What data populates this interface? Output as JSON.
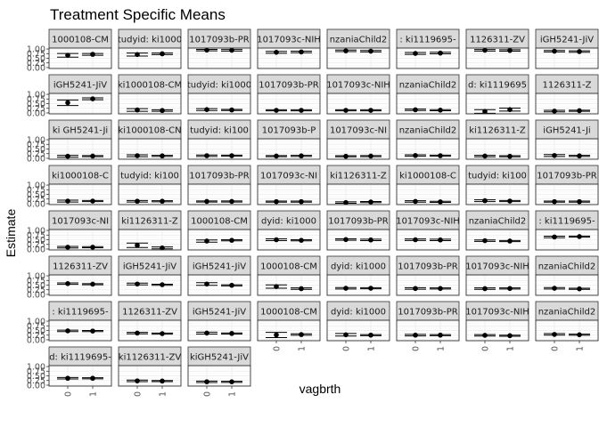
{
  "chart_data": {
    "type": "scatter",
    "title": "Treatment Specific Means",
    "xlabel": "vagbrth",
    "ylabel": "Estimate",
    "x_categories": [
      "0",
      "1"
    ],
    "y_ticks": [
      "0.00",
      "0.25",
      "0.50",
      "0.75",
      "1.00"
    ],
    "ylim": [
      -0.05,
      1.05
    ],
    "grid": true,
    "layout": {
      "ncol": 8,
      "nrow": 8
    },
    "panels": [
      {
        "strip": "1000108-CM",
        "values": [
          {
            "x": "0",
            "est": 0.66,
            "lo": 0.56,
            "hi": 0.76
          },
          {
            "x": "1",
            "est": 0.71,
            "lo": 0.66,
            "hi": 0.76
          }
        ]
      },
      {
        "strip": "tudyid: ki1000",
        "values": [
          {
            "x": "0",
            "est": 0.7,
            "lo": 0.62,
            "hi": 0.78
          },
          {
            "x": "1",
            "est": 0.74,
            "lo": 0.7,
            "hi": 0.78
          }
        ]
      },
      {
        "strip": "1017093b-PR",
        "values": [
          {
            "x": "0",
            "est": 0.94,
            "lo": 0.9,
            "hi": 0.98
          },
          {
            "x": "1",
            "est": 0.93,
            "lo": 0.89,
            "hi": 0.97
          }
        ]
      },
      {
        "strip": "1017093c-NIH",
        "values": [
          {
            "x": "0",
            "est": 0.82,
            "lo": 0.77,
            "hi": 0.87
          },
          {
            "x": "1",
            "est": 0.84,
            "lo": 0.8,
            "hi": 0.88
          }
        ]
      },
      {
        "strip": "nzaniaChild2",
        "values": [
          {
            "x": "0",
            "est": 0.9,
            "lo": 0.86,
            "hi": 0.94
          },
          {
            "x": "1",
            "est": 0.88,
            "lo": 0.84,
            "hi": 0.92
          }
        ]
      },
      {
        "strip": ": ki1119695-",
        "values": [
          {
            "x": "0",
            "est": 0.76,
            "lo": 0.71,
            "hi": 0.81
          },
          {
            "x": "1",
            "est": 0.78,
            "lo": 0.74,
            "hi": 0.82
          }
        ]
      },
      {
        "strip": "1126311-ZV",
        "values": [
          {
            "x": "0",
            "est": 0.93,
            "lo": 0.89,
            "hi": 0.97
          },
          {
            "x": "1",
            "est": 0.92,
            "lo": 0.88,
            "hi": 0.96
          }
        ]
      },
      {
        "strip": "iGH5241-JiV",
        "values": [
          {
            "x": "0",
            "est": 0.88,
            "lo": 0.84,
            "hi": 0.92
          },
          {
            "x": "1",
            "est": 0.86,
            "lo": 0.82,
            "hi": 0.9
          }
        ]
      },
      {
        "strip": "iGH5241-JiV",
        "values": [
          {
            "x": "0",
            "est": 0.55,
            "lo": 0.4,
            "hi": 0.7
          },
          {
            "x": "1",
            "est": 0.76,
            "lo": 0.71,
            "hi": 0.81
          }
        ]
      },
      {
        "strip": "ki1000108-CM",
        "values": [
          {
            "x": "0",
            "est": 0.16,
            "lo": 0.09,
            "hi": 0.23
          },
          {
            "x": "1",
            "est": 0.13,
            "lo": 0.09,
            "hi": 0.17
          }
        ]
      },
      {
        "strip": "tudyid: ki1000",
        "values": [
          {
            "x": "0",
            "est": 0.18,
            "lo": 0.13,
            "hi": 0.23
          },
          {
            "x": "1",
            "est": 0.16,
            "lo": 0.13,
            "hi": 0.19
          }
        ]
      },
      {
        "strip": "1017093b-PR",
        "values": [
          {
            "x": "0",
            "est": 0.14,
            "lo": 0.11,
            "hi": 0.17
          },
          {
            "x": "1",
            "est": 0.14,
            "lo": 0.11,
            "hi": 0.17
          }
        ]
      },
      {
        "strip": "1017093c-NIH",
        "values": [
          {
            "x": "0",
            "est": 0.14,
            "lo": 0.11,
            "hi": 0.17
          },
          {
            "x": "1",
            "est": 0.14,
            "lo": 0.11,
            "hi": 0.17
          }
        ]
      },
      {
        "strip": "nzaniaChild2",
        "values": [
          {
            "x": "0",
            "est": 0.17,
            "lo": 0.13,
            "hi": 0.21
          },
          {
            "x": "1",
            "est": 0.15,
            "lo": 0.12,
            "hi": 0.18
          }
        ]
      },
      {
        "strip": "d: ki1119695",
        "values": [
          {
            "x": "0",
            "est": 0.08,
            "lo": -0.02,
            "hi": 0.18
          },
          {
            "x": "1",
            "est": 0.18,
            "lo": 0.1,
            "hi": 0.26
          }
        ]
      },
      {
        "strip": "1126311-Z",
        "values": [
          {
            "x": "0",
            "est": 0.1,
            "lo": 0.06,
            "hi": 0.14
          },
          {
            "x": "1",
            "est": 0.12,
            "lo": 0.09,
            "hi": 0.15
          }
        ]
      },
      {
        "strip": "ki GH5241-Ji",
        "values": [
          {
            "x": "0",
            "est": 0.11,
            "lo": 0.06,
            "hi": 0.16
          },
          {
            "x": "1",
            "est": 0.12,
            "lo": 0.09,
            "hi": 0.15
          }
        ]
      },
      {
        "strip": "ki1000108-CN",
        "values": [
          {
            "x": "0",
            "est": 0.14,
            "lo": 0.09,
            "hi": 0.19
          },
          {
            "x": "1",
            "est": 0.13,
            "lo": 0.1,
            "hi": 0.16
          }
        ]
      },
      {
        "strip": "tudyid: ki100",
        "values": [
          {
            "x": "0",
            "est": 0.14,
            "lo": 0.1,
            "hi": 0.18
          },
          {
            "x": "1",
            "est": 0.14,
            "lo": 0.11,
            "hi": 0.17
          }
        ]
      },
      {
        "strip": "1017093b-P",
        "values": [
          {
            "x": "0",
            "est": 0.12,
            "lo": 0.09,
            "hi": 0.15
          },
          {
            "x": "1",
            "est": 0.13,
            "lo": 0.1,
            "hi": 0.16
          }
        ]
      },
      {
        "strip": "1017093c-NI",
        "values": [
          {
            "x": "0",
            "est": 0.11,
            "lo": 0.08,
            "hi": 0.14
          },
          {
            "x": "1",
            "est": 0.12,
            "lo": 0.09,
            "hi": 0.15
          }
        ]
      },
      {
        "strip": "nzaniaChild2",
        "values": [
          {
            "x": "0",
            "est": 0.15,
            "lo": 0.11,
            "hi": 0.19
          },
          {
            "x": "1",
            "est": 0.14,
            "lo": 0.11,
            "hi": 0.17
          }
        ]
      },
      {
        "strip": "ki1126311-Z",
        "values": [
          {
            "x": "0",
            "est": 0.12,
            "lo": 0.08,
            "hi": 0.16
          },
          {
            "x": "1",
            "est": 0.11,
            "lo": 0.08,
            "hi": 0.14
          }
        ]
      },
      {
        "strip": "iGH5241-Ji",
        "values": [
          {
            "x": "0",
            "est": 0.15,
            "lo": 0.1,
            "hi": 0.2
          },
          {
            "x": "1",
            "est": 0.13,
            "lo": 0.1,
            "hi": 0.16
          }
        ]
      },
      {
        "strip": "ki1000108-C",
        "values": [
          {
            "x": "0",
            "est": 0.14,
            "lo": 0.09,
            "hi": 0.19
          },
          {
            "x": "1",
            "est": 0.14,
            "lo": 0.11,
            "hi": 0.17
          }
        ]
      },
      {
        "strip": "tudyid: ki100",
        "values": [
          {
            "x": "0",
            "est": 0.13,
            "lo": 0.09,
            "hi": 0.17
          },
          {
            "x": "1",
            "est": 0.13,
            "lo": 0.1,
            "hi": 0.16
          }
        ]
      },
      {
        "strip": "1017093b-PR",
        "values": [
          {
            "x": "0",
            "est": 0.12,
            "lo": 0.09,
            "hi": 0.15
          },
          {
            "x": "1",
            "est": 0.12,
            "lo": 0.09,
            "hi": 0.15
          }
        ]
      },
      {
        "strip": "1017093c-NI",
        "values": [
          {
            "x": "0",
            "est": 0.11,
            "lo": 0.08,
            "hi": 0.14
          },
          {
            "x": "1",
            "est": 0.11,
            "lo": 0.08,
            "hi": 0.14
          }
        ]
      },
      {
        "strip": "ki1126311-Z",
        "values": [
          {
            "x": "0",
            "est": 0.06,
            "lo": 0.02,
            "hi": 0.1
          },
          {
            "x": "1",
            "est": 0.09,
            "lo": 0.06,
            "hi": 0.12
          }
        ]
      },
      {
        "strip": "ki1000108-C",
        "values": [
          {
            "x": "0",
            "est": 0.12,
            "lo": 0.08,
            "hi": 0.16
          },
          {
            "x": "1",
            "est": 0.1,
            "lo": 0.07,
            "hi": 0.13
          }
        ]
      },
      {
        "strip": "tudyid: ki100",
        "values": [
          {
            "x": "0",
            "est": 0.16,
            "lo": 0.11,
            "hi": 0.21
          },
          {
            "x": "1",
            "est": 0.14,
            "lo": 0.11,
            "hi": 0.17
          }
        ]
      },
      {
        "strip": "1017093b-PR",
        "values": [
          {
            "x": "0",
            "est": 0.11,
            "lo": 0.08,
            "hi": 0.14
          },
          {
            "x": "1",
            "est": 0.11,
            "lo": 0.08,
            "hi": 0.14
          }
        ]
      },
      {
        "strip": "1017093c-NI",
        "values": [
          {
            "x": "0",
            "est": 0.1,
            "lo": 0.06,
            "hi": 0.14
          },
          {
            "x": "1",
            "est": 0.1,
            "lo": 0.07,
            "hi": 0.13
          }
        ]
      },
      {
        "strip": "ki1126311-Z",
        "values": [
          {
            "x": "0",
            "est": 0.2,
            "lo": 0.08,
            "hi": 0.32
          },
          {
            "x": "1",
            "est": 0.06,
            "lo": 0.01,
            "hi": 0.11
          }
        ]
      },
      {
        "strip": "1000108-CM",
        "values": [
          {
            "x": "0",
            "est": 0.43,
            "lo": 0.37,
            "hi": 0.49
          },
          {
            "x": "1",
            "est": 0.47,
            "lo": 0.44,
            "hi": 0.5
          }
        ]
      },
      {
        "strip": "dyid: ki1000",
        "values": [
          {
            "x": "0",
            "est": 0.5,
            "lo": 0.45,
            "hi": 0.55
          },
          {
            "x": "1",
            "est": 0.47,
            "lo": 0.44,
            "hi": 0.5
          }
        ]
      },
      {
        "strip": "1017093b-PR",
        "values": [
          {
            "x": "0",
            "est": 0.51,
            "lo": 0.47,
            "hi": 0.55
          },
          {
            "x": "1",
            "est": 0.49,
            "lo": 0.45,
            "hi": 0.53
          }
        ]
      },
      {
        "strip": "1017093c-NIH",
        "values": [
          {
            "x": "0",
            "est": 0.5,
            "lo": 0.46,
            "hi": 0.54
          },
          {
            "x": "1",
            "est": 0.49,
            "lo": 0.45,
            "hi": 0.53
          }
        ]
      },
      {
        "strip": "nzaniaChild2",
        "values": [
          {
            "x": "0",
            "est": 0.45,
            "lo": 0.41,
            "hi": 0.49
          },
          {
            "x": "1",
            "est": 0.43,
            "lo": 0.4,
            "hi": 0.46
          }
        ]
      },
      {
        "strip": ": ki1119695-",
        "values": [
          {
            "x": "0",
            "est": 0.65,
            "lo": 0.61,
            "hi": 0.69
          },
          {
            "x": "1",
            "est": 0.67,
            "lo": 0.64,
            "hi": 0.7
          }
        ]
      },
      {
        "strip": "1126311-ZV",
        "values": [
          {
            "x": "0",
            "est": 0.58,
            "lo": 0.54,
            "hi": 0.62
          },
          {
            "x": "1",
            "est": 0.55,
            "lo": 0.52,
            "hi": 0.58
          }
        ]
      },
      {
        "strip": "iGH5241-JiV",
        "values": [
          {
            "x": "0",
            "est": 0.56,
            "lo": 0.51,
            "hi": 0.61
          },
          {
            "x": "1",
            "est": 0.52,
            "lo": 0.49,
            "hi": 0.55
          }
        ]
      },
      {
        "strip": "iGH5241-JiV",
        "values": [
          {
            "x": "0",
            "est": 0.56,
            "lo": 0.49,
            "hi": 0.63
          },
          {
            "x": "1",
            "est": 0.49,
            "lo": 0.46,
            "hi": 0.52
          }
        ]
      },
      {
        "strip": "1000108-CM",
        "values": [
          {
            "x": "0",
            "est": 0.42,
            "lo": 0.33,
            "hi": 0.51
          },
          {
            "x": "1",
            "est": 0.31,
            "lo": 0.27,
            "hi": 0.35
          }
        ]
      },
      {
        "strip": "dyid: ki1000",
        "values": [
          {
            "x": "0",
            "est": 0.33,
            "lo": 0.29,
            "hi": 0.37
          },
          {
            "x": "1",
            "est": 0.33,
            "lo": 0.3,
            "hi": 0.36
          }
        ]
      },
      {
        "strip": "1017093b-PR",
        "values": [
          {
            "x": "0",
            "est": 0.32,
            "lo": 0.28,
            "hi": 0.36
          },
          {
            "x": "1",
            "est": 0.32,
            "lo": 0.29,
            "hi": 0.35
          }
        ]
      },
      {
        "strip": "1017093c-NIH",
        "values": [
          {
            "x": "0",
            "est": 0.31,
            "lo": 0.27,
            "hi": 0.35
          },
          {
            "x": "1",
            "est": 0.32,
            "lo": 0.29,
            "hi": 0.35
          }
        ]
      },
      {
        "strip": "nzaniaChild2",
        "values": [
          {
            "x": "0",
            "est": 0.33,
            "lo": 0.29,
            "hi": 0.37
          },
          {
            "x": "1",
            "est": 0.3,
            "lo": 0.27,
            "hi": 0.33
          }
        ]
      },
      {
        "strip": ": ki1119695-",
        "values": [
          {
            "x": "0",
            "est": 0.48,
            "lo": 0.44,
            "hi": 0.52
          },
          {
            "x": "1",
            "est": 0.47,
            "lo": 0.44,
            "hi": 0.5
          }
        ]
      },
      {
        "strip": "1126311-ZV",
        "values": [
          {
            "x": "0",
            "est": 0.36,
            "lo": 0.32,
            "hi": 0.4
          },
          {
            "x": "1",
            "est": 0.33,
            "lo": 0.3,
            "hi": 0.36
          }
        ]
      },
      {
        "strip": "iGH5241-JiV",
        "values": [
          {
            "x": "0",
            "est": 0.36,
            "lo": 0.31,
            "hi": 0.41
          },
          {
            "x": "1",
            "est": 0.34,
            "lo": 0.31,
            "hi": 0.37
          }
        ]
      },
      {
        "strip": "1000108-CM",
        "values": [
          {
            "x": "0",
            "est": 0.26,
            "lo": 0.12,
            "hi": 0.4
          },
          {
            "x": "1",
            "est": 0.28,
            "lo": 0.24,
            "hi": 0.32
          }
        ]
      },
      {
        "strip": "dyid: ki1000",
        "values": [
          {
            "x": "0",
            "est": 0.27,
            "lo": 0.2,
            "hi": 0.34
          },
          {
            "x": "1",
            "est": 0.25,
            "lo": 0.22,
            "hi": 0.28
          }
        ]
      },
      {
        "strip": "1017093b-PR",
        "values": [
          {
            "x": "0",
            "est": 0.25,
            "lo": 0.21,
            "hi": 0.29
          },
          {
            "x": "1",
            "est": 0.25,
            "lo": 0.22,
            "hi": 0.28
          }
        ]
      },
      {
        "strip": "1017093c-NIH",
        "values": [
          {
            "x": "0",
            "est": 0.24,
            "lo": 0.2,
            "hi": 0.28
          },
          {
            "x": "1",
            "est": 0.22,
            "lo": 0.19,
            "hi": 0.25
          }
        ]
      },
      {
        "strip": "nzaniaChild2",
        "values": [
          {
            "x": "0",
            "est": 0.29,
            "lo": 0.25,
            "hi": 0.33
          },
          {
            "x": "1",
            "est": 0.27,
            "lo": 0.24,
            "hi": 0.3
          }
        ]
      },
      {
        "strip": "d: ki1119695-",
        "values": [
          {
            "x": "0",
            "est": 0.37,
            "lo": 0.33,
            "hi": 0.41
          },
          {
            "x": "1",
            "est": 0.37,
            "lo": 0.34,
            "hi": 0.4
          }
        ]
      },
      {
        "strip": "ki1126311-ZV",
        "values": [
          {
            "x": "0",
            "est": 0.23,
            "lo": 0.19,
            "hi": 0.27
          },
          {
            "x": "1",
            "est": 0.22,
            "lo": 0.19,
            "hi": 0.25
          }
        ]
      },
      {
        "strip": "kiGH5241-JiV",
        "values": [
          {
            "x": "0",
            "est": 0.18,
            "lo": 0.14,
            "hi": 0.22
          },
          {
            "x": "1",
            "est": 0.18,
            "lo": 0.15,
            "hi": 0.21
          }
        ]
      }
    ]
  }
}
